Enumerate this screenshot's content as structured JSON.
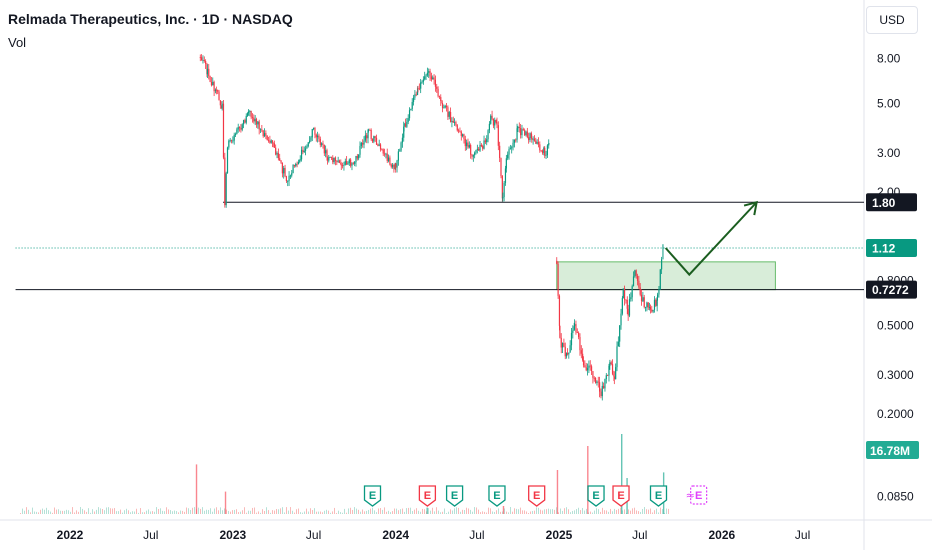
{
  "header": {
    "title": "Relmada Therapeutics, Inc. · 1D · NASDAQ",
    "indicator": "Vol",
    "currency": "USD"
  },
  "chart_data": {
    "type": "candlestick",
    "scale": "log",
    "ylim": [
      0.0775,
      9.1
    ],
    "x_ticks": [
      {
        "label": "2022",
        "date": "2022-01-01",
        "bold": true
      },
      {
        "label": "Jul",
        "date": "2022-07-01",
        "bold": false
      },
      {
        "label": "2023",
        "date": "2023-01-01",
        "bold": true
      },
      {
        "label": "Jul",
        "date": "2023-07-01",
        "bold": false
      },
      {
        "label": "2024",
        "date": "2024-01-01",
        "bold": true
      },
      {
        "label": "Jul",
        "date": "2024-07-01",
        "bold": false
      },
      {
        "label": "2025",
        "date": "2025-01-01",
        "bold": true
      },
      {
        "label": "Jul",
        "date": "2025-07-01",
        "bold": false
      },
      {
        "label": "2026",
        "date": "2026-01-01",
        "bold": true
      },
      {
        "label": "Jul",
        "date": "2026-07-01",
        "bold": false
      }
    ],
    "y_ticks": [
      {
        "label": "8.00",
        "value": 8.0
      },
      {
        "label": "5.00",
        "value": 5.0
      },
      {
        "label": "3.00",
        "value": 3.0
      },
      {
        "label": "2.00",
        "value": 2.0
      },
      {
        "label": "0.8000",
        "value": 0.8
      },
      {
        "label": "0.5000",
        "value": 0.5
      },
      {
        "label": "0.3000",
        "value": 0.3
      },
      {
        "label": "0.2000",
        "value": 0.2
      },
      {
        "label": "0.0850",
        "value": 0.085
      }
    ],
    "price_path": [
      [
        "2022-10-20",
        8.1
      ],
      [
        "2022-11-05",
        7.0
      ],
      [
        "2022-11-25",
        5.6
      ],
      [
        "2022-12-08",
        4.9
      ],
      [
        "2022-12-14",
        1.8
      ],
      [
        "2022-12-20",
        3.3
      ],
      [
        "2023-01-10",
        3.7
      ],
      [
        "2023-02-05",
        4.6
      ],
      [
        "2023-03-01",
        3.9
      ],
      [
        "2023-04-01",
        3.2
      ],
      [
        "2023-05-01",
        2.3
      ],
      [
        "2023-06-01",
        2.9
      ],
      [
        "2023-07-01",
        3.9
      ],
      [
        "2023-08-01",
        2.9
      ],
      [
        "2023-09-01",
        2.6
      ],
      [
        "2023-10-01",
        2.8
      ],
      [
        "2023-11-01",
        3.8
      ],
      [
        "2023-12-01",
        3.0
      ],
      [
        "2024-01-01",
        2.6
      ],
      [
        "2024-01-20",
        3.9
      ],
      [
        "2024-02-20",
        5.8
      ],
      [
        "2024-03-15",
        7.0
      ],
      [
        "2024-04-15",
        5.0
      ],
      [
        "2024-05-15",
        3.9
      ],
      [
        "2024-06-20",
        3.0
      ],
      [
        "2024-07-20",
        3.3
      ],
      [
        "2024-08-01",
        4.4
      ],
      [
        "2024-08-15",
        3.9
      ],
      [
        "2024-08-28",
        1.85
      ],
      [
        "2024-09-05",
        2.8
      ],
      [
        "2024-10-01",
        3.8
      ],
      [
        "2024-11-01",
        3.5
      ],
      [
        "2024-11-30",
        3.0
      ],
      [
        "2024-12-10",
        3.2
      ]
    ],
    "price_path_2": [
      [
        "2024-12-27",
        0.98
      ],
      [
        "2025-01-03",
        0.43
      ],
      [
        "2025-01-20",
        0.36
      ],
      [
        "2025-02-05",
        0.52
      ],
      [
        "2025-02-25",
        0.34
      ],
      [
        "2025-03-15",
        0.31
      ],
      [
        "2025-04-05",
        0.25
      ],
      [
        "2025-04-25",
        0.33
      ],
      [
        "2025-05-05",
        0.3
      ],
      [
        "2025-05-25",
        0.71
      ],
      [
        "2025-06-05",
        0.58
      ],
      [
        "2025-06-20",
        0.9
      ],
      [
        "2025-07-05",
        0.66
      ],
      [
        "2025-07-25",
        0.58
      ],
      [
        "2025-08-10",
        0.66
      ],
      [
        "2025-08-22",
        1.12
      ]
    ],
    "horizontal_lines": [
      {
        "value": 1.8,
        "label": "1.80",
        "style": "solid",
        "color": "#131722",
        "start": "2022-12-10"
      },
      {
        "value": 0.7272,
        "label": "0.7272",
        "style": "solid",
        "color": "#131722",
        "start": "2021-09-01"
      },
      {
        "value": 1.12,
        "label": "1.12",
        "style": "dotted",
        "color": "#089981",
        "start": "2021-09-01"
      }
    ],
    "zone": {
      "start": "2024-12-27",
      "end": "2026-05-01",
      "low": 0.7272,
      "high": 0.97
    },
    "projection": [
      [
        "2025-08-28",
        1.12
      ],
      [
        "2025-10-20",
        0.85
      ],
      [
        "2026-03-20",
        1.8
      ]
    ],
    "volume": {
      "label": "16.78M",
      "spikes": [
        {
          "date": "2022-10-10",
          "size": 0.62,
          "color": "#f7525f"
        },
        {
          "date": "2022-12-14",
          "size": 0.28,
          "color": "#f7525f"
        },
        {
          "date": "2024-03-10",
          "size": 0.08,
          "color": "#22ab94"
        },
        {
          "date": "2024-08-28",
          "size": 0.1,
          "color": "#f7525f"
        },
        {
          "date": "2024-12-27",
          "size": 0.55,
          "color": "#f7525f"
        },
        {
          "date": "2025-03-05",
          "size": 0.85,
          "color": "#f7525f"
        },
        {
          "date": "2025-05-20",
          "size": 1.0,
          "color": "#22ab94"
        },
        {
          "date": "2025-06-01",
          "size": 0.45,
          "color": "#22ab94"
        },
        {
          "date": "2025-08-22",
          "size": 0.52,
          "color": "#22ab94"
        }
      ]
    },
    "colors": {
      "up": "#089981",
      "down": "#f23645",
      "volume_label_bg": "#22ab94"
    },
    "events": [
      {
        "date": "2023-11-10",
        "label": "E",
        "kind": "positive"
      },
      {
        "date": "2024-03-12",
        "label": "E",
        "kind": "negative"
      },
      {
        "date": "2024-05-12",
        "label": "E",
        "kind": "positive"
      },
      {
        "date": "2024-08-15",
        "label": "E",
        "kind": "positive"
      },
      {
        "date": "2024-11-12",
        "label": "E",
        "kind": "negative"
      },
      {
        "date": "2025-03-25",
        "label": "E",
        "kind": "positive"
      },
      {
        "date": "2025-05-20",
        "label": "E",
        "kind": "negative"
      },
      {
        "date": "2025-08-12",
        "label": "E",
        "kind": "positive"
      },
      {
        "date": "2025-11-10",
        "label": "E",
        "kind": "upcoming"
      }
    ]
  }
}
